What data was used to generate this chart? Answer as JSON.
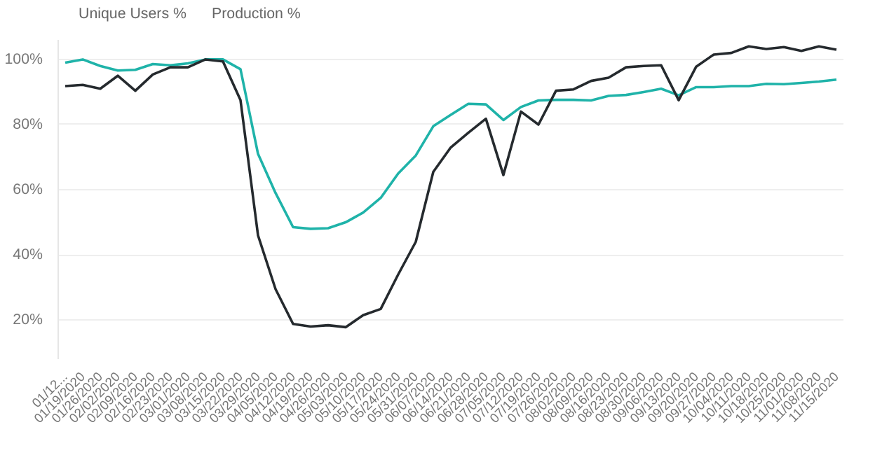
{
  "chart_data": {
    "type": "line",
    "categories": [
      "01/12...",
      "01/19/2020",
      "01/26/2020",
      "02/02/2020",
      "02/09/2020",
      "02/16/2020",
      "02/23/2020",
      "03/01/2020",
      "03/08/2020",
      "03/15/2020",
      "03/22/2020",
      "03/29/2020",
      "04/05/2020",
      "04/12/2020",
      "04/19/2020",
      "04/26/2020",
      "05/03/2020",
      "05/10/2020",
      "05/17/2020",
      "05/24/2020",
      "05/31/2020",
      "06/07/2020",
      "06/14/2020",
      "06/21/2020",
      "06/28/2020",
      "07/05/2020",
      "07/12/2020",
      "07/19/2020",
      "07/26/2020",
      "08/02/2020",
      "08/09/2020",
      "08/16/2020",
      "08/23/2020",
      "08/30/2020",
      "09/06/2020",
      "09/13/2020",
      "09/20/2020",
      "09/27/2020",
      "10/04/2020",
      "10/11/2020",
      "10/18/2020",
      "10/25/2020",
      "11/01/2020",
      "11/08/2020",
      "11/15/2020"
    ],
    "series": [
      {
        "name": "Unique Users %",
        "color": "#1fb3a9",
        "values": [
          99,
          100,
          98,
          96.6,
          96.8,
          98.6,
          98.2,
          98.8,
          100,
          100,
          97,
          71,
          59,
          48.5,
          48,
          48.2,
          50,
          53,
          57.5,
          65,
          70.5,
          79.5,
          83,
          86.4,
          86.2,
          81.4,
          85.4,
          87.4,
          87.6,
          87.6,
          87.4,
          88.8,
          89.1,
          90,
          91,
          89,
          91.5,
          91.5,
          91.8,
          91.8,
          92.5,
          92.4,
          92.8,
          93.2,
          93.8
        ]
      },
      {
        "name": "Production %",
        "color": "#252a2e",
        "values": [
          91.8,
          92.2,
          91,
          95,
          90.4,
          95.4,
          97.6,
          97.6,
          100,
          99.4,
          87.5,
          46,
          29.5,
          18.8,
          18,
          18.4,
          17.8,
          21.5,
          23.4,
          34,
          44,
          65.5,
          73,
          77.5,
          81.8,
          64.5,
          84,
          80,
          90.4,
          90.8,
          93.4,
          94.4,
          97.6,
          98,
          98.2,
          87.5,
          97.8,
          101.5,
          102,
          104,
          103.2,
          103.8,
          102.6,
          104,
          103
        ]
      }
    ],
    "ylim": [
      8,
      106
    ],
    "yticks": [
      {
        "value": 20,
        "label": "20%"
      },
      {
        "value": 40,
        "label": "40%"
      },
      {
        "value": 60,
        "label": "60%"
      },
      {
        "value": 80,
        "label": "80%"
      },
      {
        "value": 100,
        "label": "100%"
      }
    ],
    "grid": "y",
    "legend": "top left",
    "marker": "none",
    "line_style": "solid"
  }
}
